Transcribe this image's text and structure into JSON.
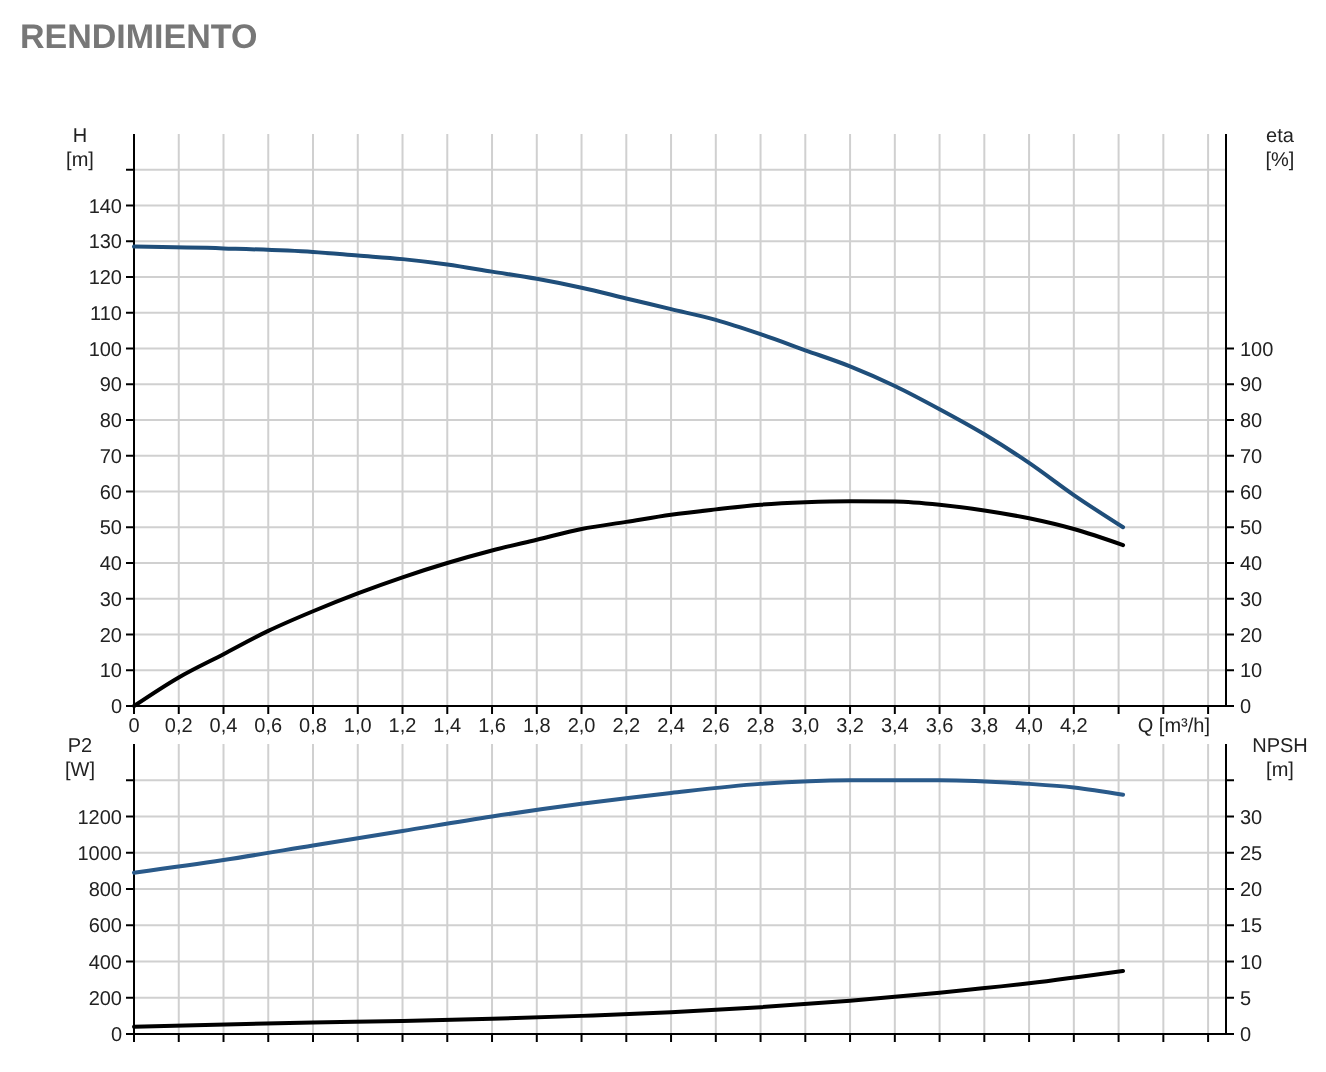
{
  "chart_data": [
    {
      "type": "line",
      "title": "RENDIMIENTO",
      "xlabel": "Q [m³/h]",
      "ylabel": "H [m]",
      "y2label": "eta [%]",
      "xlim": [
        0,
        4.88
      ],
      "xticks": [
        0,
        {
          "value": 0.2,
          "label": "0,2"
        },
        {
          "value": 0.4,
          "label": "0,4"
        },
        {
          "value": 0.6,
          "label": "0,6"
        },
        {
          "value": 0.8,
          "label": "0,8"
        },
        {
          "value": 1.0,
          "label": "1,0"
        },
        {
          "value": 1.2,
          "label": "1,2"
        },
        {
          "value": 1.4,
          "label": "1,4"
        },
        {
          "value": 1.6,
          "label": "1,6"
        },
        {
          "value": 1.8,
          "label": "1,8"
        },
        {
          "value": 2.0,
          "label": "2,0"
        },
        {
          "value": 2.2,
          "label": "2,2"
        },
        {
          "value": 2.4,
          "label": "2,4"
        },
        {
          "value": 2.6,
          "label": "2,6"
        },
        {
          "value": 2.8,
          "label": "2,8"
        },
        {
          "value": 3.0,
          "label": "3,0"
        },
        {
          "value": 3.2,
          "label": "3,2"
        },
        {
          "value": 3.4,
          "label": "3,4"
        },
        {
          "value": 3.6,
          "label": "3,6"
        },
        {
          "value": 3.8,
          "label": "3,8"
        },
        {
          "value": 4.0,
          "label": "4,0"
        },
        {
          "value": 4.2,
          "label": "4,2"
        },
        {
          "value": 4.4,
          "label": null
        },
        {
          "value": 4.6,
          "label": null
        },
        {
          "value": 4.8,
          "label": null
        }
      ],
      "ylim": [
        0,
        160
      ],
      "yticks": [
        0,
        10,
        20,
        30,
        40,
        50,
        60,
        70,
        80,
        90,
        100,
        110,
        120,
        130,
        140,
        {
          "value": 150,
          "label": null
        }
      ],
      "y2lim": [
        0,
        160
      ],
      "y2ticks": [
        0,
        10,
        20,
        30,
        40,
        50,
        60,
        70,
        80,
        90,
        100
      ],
      "grid": true,
      "x": [
        0,
        0.4,
        0.8,
        1.0,
        1.2,
        1.4,
        1.6,
        1.8,
        2.0,
        2.2,
        2.4,
        2.6,
        2.8,
        3.0,
        3.2,
        3.4,
        3.6,
        3.8,
        4.0,
        4.2,
        4.42
      ],
      "series": [
        {
          "color": "#1f4e7a",
          "values": [
            128.5,
            128,
            127,
            126,
            125,
            123.5,
            121.5,
            119.5,
            117,
            114,
            111,
            108,
            104,
            99.5,
            95,
            89.5,
            83,
            76,
            68,
            59,
            50
          ]
        },
        {
          "color": "#000000",
          "axis": "y2",
          "x": [
            0,
            0.2,
            0.4,
            0.6,
            0.8,
            1.0,
            1.2,
            1.4,
            1.6,
            1.8,
            2.0,
            2.2,
            2.4,
            2.6,
            2.8,
            3.0,
            3.2,
            3.4,
            3.6,
            3.8,
            4.0,
            4.2,
            4.42
          ],
          "values": [
            0,
            8,
            14.5,
            21,
            26.5,
            31.5,
            36,
            40,
            43.5,
            46.5,
            49.5,
            51.5,
            53.5,
            55,
            56.3,
            57,
            57.3,
            57.2,
            56.3,
            54.7,
            52.5,
            49.5,
            45
          ]
        }
      ]
    },
    {
      "type": "line",
      "ylabel": "P2 [W]",
      "y2label": "NPSH [m]",
      "tick_labels": "y",
      "xlim": [
        0,
        4.88
      ],
      "xticks": [
        0,
        0.2,
        0.4,
        0.6,
        0.8,
        1.0,
        1.2,
        1.4,
        1.6,
        1.8,
        2.0,
        2.2,
        2.4,
        2.6,
        2.8,
        3.0,
        3.2,
        3.4,
        3.6,
        3.8,
        4.0,
        4.2,
        4.4,
        4.6,
        4.8
      ],
      "ylim": [
        0,
        1600
      ],
      "yticks": [
        0,
        200,
        400,
        600,
        800,
        1000,
        1200,
        {
          "value": 1400,
          "label": null
        }
      ],
      "y2lim": [
        0,
        40
      ],
      "y2ticks": [
        0,
        5,
        10,
        15,
        20,
        25,
        30,
        {
          "value": 35,
          "label": null
        }
      ],
      "grid": true,
      "x": [
        0,
        0.4,
        0.8,
        1.2,
        1.6,
        2.0,
        2.4,
        2.8,
        3.2,
        3.4,
        3.6,
        4.0,
        4.2,
        4.42
      ],
      "series": [
        {
          "color": "#2a5a8a",
          "values": [
            890,
            960,
            1040,
            1120,
            1200,
            1270,
            1330,
            1380,
            1400,
            1400,
            1400,
            1380,
            1360,
            1320
          ]
        },
        {
          "color": "#000000",
          "axis": "y2",
          "x": [
            0,
            0.8,
            1.2,
            1.6,
            2.0,
            2.4,
            2.8,
            3.2,
            3.6,
            4.0,
            4.42
          ],
          "values": [
            1,
            1.6,
            1.8,
            2.1,
            2.5,
            3,
            3.7,
            4.6,
            5.7,
            7,
            8.7
          ]
        }
      ]
    }
  ]
}
